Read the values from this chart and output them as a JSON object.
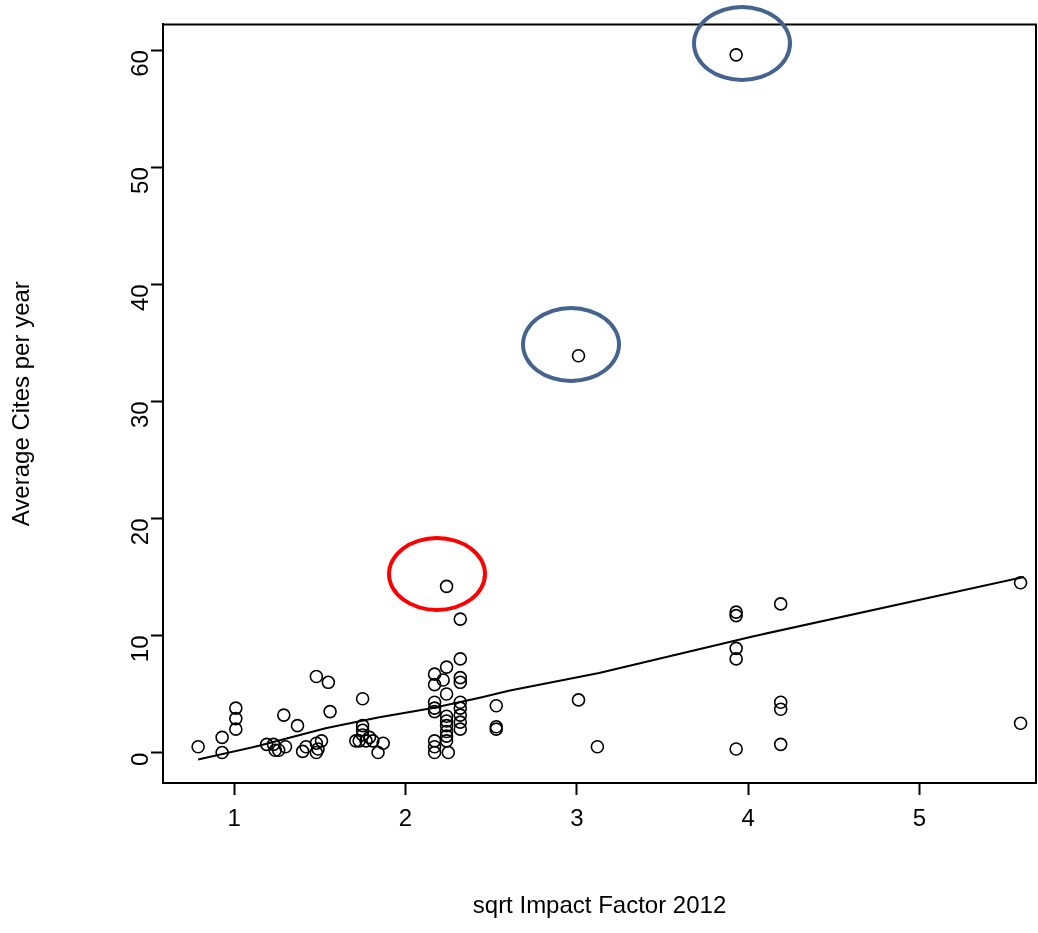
{
  "chart_data": {
    "type": "scatter",
    "xlabel": "sqrt Impact Factor 2012",
    "ylabel": "Average Cites per year",
    "xlim": [
      0.585,
      5.68
    ],
    "ylim": [
      -2.6,
      62.2
    ],
    "xticks": [
      1,
      2,
      3,
      4,
      5
    ],
    "yticks": [
      0,
      10,
      20,
      30,
      40,
      50,
      60
    ],
    "marker": "circle",
    "series": [
      {
        "type": "scatter",
        "color": "#000000",
        "x": [
          0.79,
          0.93,
          0.93,
          1.01,
          1.01,
          1.01,
          1.19,
          1.23,
          1.24,
          1.26,
          1.29,
          1.3,
          1.37,
          1.4,
          1.42,
          1.48,
          1.48,
          1.48,
          1.49,
          1.51,
          1.55,
          1.56,
          1.71,
          1.73,
          1.75,
          1.75,
          1.75,
          1.75,
          1.77,
          1.79,
          1.81,
          1.84,
          1.87,
          2.17,
          2.17,
          2.22,
          2.24,
          2.24,
          2.32,
          2.32,
          2.32,
          2.32,
          2.24,
          2.17,
          2.17,
          2.17,
          2.24,
          2.24,
          2.24,
          2.24,
          2.24,
          2.24,
          2.32,
          2.32,
          2.32,
          2.32,
          2.32,
          2.17,
          2.17,
          2.17,
          2.25,
          2.53,
          2.53,
          2.53,
          3.01,
          3.12,
          3.93,
          3.93,
          3.93,
          3.93,
          3.93,
          4.19,
          4.19,
          4.19,
          4.19,
          5.59,
          5.59,
          3.01,
          3.93
        ],
        "values": [
          0.5,
          0,
          1.3,
          3.8,
          2.9,
          2.0,
          0.7,
          0.7,
          0.2,
          0.2,
          3.2,
          0.5,
          2.3,
          0.1,
          0.5,
          6.5,
          0.8,
          0,
          0.3,
          1.0,
          6.0,
          3.5,
          1.0,
          1.0,
          4.6,
          2.3,
          1.9,
          1.5,
          1.0,
          1.3,
          1.0,
          0,
          0.8,
          6.7,
          5.8,
          6.2,
          7.3,
          5.0,
          8.0,
          6.4,
          6.0,
          11.4,
          14.2,
          4.3,
          3.8,
          3.5,
          3.1,
          2.7,
          2.3,
          1.8,
          1.4,
          1.0,
          4.3,
          3.8,
          3.2,
          2.6,
          2.0,
          1.0,
          0.5,
          0,
          0,
          4.0,
          2.2,
          2.0,
          4.5,
          0.5,
          12.0,
          11.7,
          8.9,
          8.0,
          0.3,
          12.7,
          4.3,
          3.7,
          0.7,
          14.5,
          2.5,
          33.9,
          59.6
        ]
      },
      {
        "type": "line",
        "color": "#000000",
        "marker": "none",
        "x": [
          0.79,
          1.15,
          1.54,
          1.84,
          2.16,
          2.44,
          2.61,
          3.13,
          4.02,
          5.61
        ],
        "values": [
          -0.6,
          0.6,
          2.1,
          3.0,
          3.8,
          4.7,
          5.3,
          6.8,
          9.9,
          15.0
        ]
      }
    ]
  }
}
